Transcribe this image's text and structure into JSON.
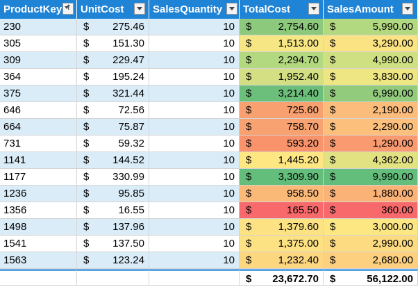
{
  "headers": [
    "ProductKey",
    "UnitCost",
    "SalesQuantity",
    "TotalCost",
    "SalesAmount"
  ],
  "currency_symbol": "$",
  "rows": [
    {
      "key": "230",
      "unit": "275.46",
      "qty": "10",
      "total": "2,754.60",
      "sales": "5,990.00",
      "totalColor": "#8cc97c",
      "salesColor": "#b3d980"
    },
    {
      "key": "305",
      "unit": "151.30",
      "qty": "10",
      "total": "1,513.00",
      "sales": "3,290.00",
      "totalColor": "#f7e784",
      "salesColor": "#fbe383"
    },
    {
      "key": "309",
      "unit": "229.47",
      "qty": "10",
      "total": "2,294.70",
      "sales": "4,990.00",
      "totalColor": "#b3d980",
      "salesColor": "#cfe082"
    },
    {
      "key": "364",
      "unit": "195.24",
      "qty": "10",
      "total": "1,952.40",
      "sales": "3,830.00",
      "totalColor": "#d3df82",
      "salesColor": "#eee683"
    },
    {
      "key": "375",
      "unit": "321.44",
      "qty": "10",
      "total": "3,214.40",
      "sales": "6,990.00",
      "totalColor": "#6cbe7b",
      "salesColor": "#93cb7d"
    },
    {
      "key": "646",
      "unit": "72.56",
      "qty": "10",
      "total": "725.60",
      "sales": "2,190.00",
      "totalColor": "#f8a06f",
      "salesColor": "#fcbc7b"
    },
    {
      "key": "664",
      "unit": "75.87",
      "qty": "10",
      "total": "758.70",
      "sales": "2,290.00",
      "totalColor": "#f8a271",
      "salesColor": "#fcc07c"
    },
    {
      "key": "731",
      "unit": "59.32",
      "qty": "10",
      "total": "593.20",
      "sales": "1,290.00",
      "totalColor": "#f8936c",
      "salesColor": "#fa9a70"
    },
    {
      "key": "1141",
      "unit": "144.52",
      "qty": "10",
      "total": "1,445.20",
      "sales": "4,362.00",
      "totalColor": "#fee783",
      "salesColor": "#e2e283"
    },
    {
      "key": "1177",
      "unit": "330.99",
      "qty": "10",
      "total": "3,309.90",
      "sales": "9,990.00",
      "totalColor": "#63be7b",
      "salesColor": "#63be7b"
    },
    {
      "key": "1236",
      "unit": "95.85",
      "qty": "10",
      "total": "958.50",
      "sales": "1,880.00",
      "totalColor": "#fbb978",
      "salesColor": "#fbb277"
    },
    {
      "key": "1356",
      "unit": "16.55",
      "qty": "10",
      "total": "165.50",
      "sales": "360.00",
      "totalColor": "#f8696b",
      "salesColor": "#f8696b"
    },
    {
      "key": "1498",
      "unit": "137.96",
      "qty": "10",
      "total": "1,379.60",
      "sales": "3,000.00",
      "totalColor": "#fde283",
      "salesColor": "#fde783"
    },
    {
      "key": "1541",
      "unit": "137.50",
      "qty": "10",
      "total": "1,375.00",
      "sales": "2,990.00",
      "totalColor": "#fde283",
      "salesColor": "#fddb81"
    },
    {
      "key": "1563",
      "unit": "123.24",
      "qty": "10",
      "total": "1,232.40",
      "sales": "2,680.00",
      "totalColor": "#fdd680",
      "salesColor": "#fdd07f"
    }
  ],
  "totals": {
    "total": "23,672.70",
    "sales": "56,122.00"
  },
  "colors": {
    "header": "#1f83d6",
    "band": "#d9ecf8"
  }
}
